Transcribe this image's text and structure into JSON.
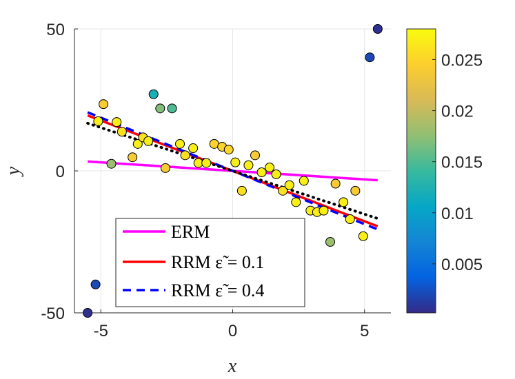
{
  "chart_data": {
    "type": "scatter",
    "xlabel": "x",
    "ylabel": "y",
    "xlim": [
      -6,
      6
    ],
    "ylim": [
      -50,
      50
    ],
    "xticks": [
      -5,
      0,
      5
    ],
    "yticks": [
      -50,
      0,
      50
    ],
    "xtick_labels": [
      "-5",
      "0",
      "5"
    ],
    "ytick_labels": [
      "-50",
      "0",
      "50"
    ],
    "grid": true,
    "colorbar": {
      "range": [
        0.0002,
        0.028
      ],
      "ticks": [
        0.005,
        0.01,
        0.015,
        0.02,
        0.025
      ],
      "tick_labels": [
        "0.005",
        "0.01",
        "0.015",
        "0.02",
        "0.025"
      ],
      "colormap": "parula"
    },
    "points": [
      {
        "x": -5.5,
        "y": -50,
        "w": 0.0005
      },
      {
        "x": -5.2,
        "y": -40,
        "w": 0.002
      },
      {
        "x": 5.2,
        "y": 40,
        "w": 0.002
      },
      {
        "x": 5.5,
        "y": 50,
        "w": 0.0005
      },
      {
        "x": -5.1,
        "y": 17.5,
        "w": 0.027
      },
      {
        "x": -4.9,
        "y": 23.5,
        "w": 0.024
      },
      {
        "x": -4.6,
        "y": 2.5,
        "w": 0.018
      },
      {
        "x": -4.4,
        "y": 17.2,
        "w": 0.027
      },
      {
        "x": -4.2,
        "y": 13.8,
        "w": 0.026
      },
      {
        "x": -3.8,
        "y": 4.8,
        "w": 0.024
      },
      {
        "x": -3.6,
        "y": 9.5,
        "w": 0.027
      },
      {
        "x": -3.4,
        "y": 11.8,
        "w": 0.026
      },
      {
        "x": -3.2,
        "y": 10.5,
        "w": 0.027
      },
      {
        "x": -3.0,
        "y": 27,
        "w": 0.012
      },
      {
        "x": -2.75,
        "y": 22,
        "w": 0.017
      },
      {
        "x": -2.55,
        "y": 1,
        "w": 0.024
      },
      {
        "x": -2.3,
        "y": 22,
        "w": 0.015
      },
      {
        "x": -2.0,
        "y": 9.5,
        "w": 0.027
      },
      {
        "x": -1.8,
        "y": 5.5,
        "w": 0.026
      },
      {
        "x": -1.5,
        "y": 8,
        "w": 0.027
      },
      {
        "x": -1.3,
        "y": 2.8,
        "w": 0.027
      },
      {
        "x": -1.0,
        "y": 2.8,
        "w": 0.027
      },
      {
        "x": -0.7,
        "y": 9.5,
        "w": 0.025
      },
      {
        "x": -0.4,
        "y": 8.5,
        "w": 0.025
      },
      {
        "x": -0.15,
        "y": 7.5,
        "w": 0.025
      },
      {
        "x": 0.1,
        "y": 3,
        "w": 0.027
      },
      {
        "x": 0.35,
        "y": -7,
        "w": 0.026
      },
      {
        "x": 0.6,
        "y": 2,
        "w": 0.027
      },
      {
        "x": 0.85,
        "y": 5.5,
        "w": 0.024
      },
      {
        "x": 1.1,
        "y": -0.5,
        "w": 0.027
      },
      {
        "x": 1.4,
        "y": 1.2,
        "w": 0.027
      },
      {
        "x": 1.65,
        "y": -1.2,
        "w": 0.027
      },
      {
        "x": 1.9,
        "y": -7,
        "w": 0.026
      },
      {
        "x": 2.15,
        "y": -5,
        "w": 0.027
      },
      {
        "x": 2.4,
        "y": -11,
        "w": 0.027
      },
      {
        "x": 2.7,
        "y": -3.5,
        "w": 0.027
      },
      {
        "x": 2.95,
        "y": -14,
        "w": 0.027
      },
      {
        "x": 3.2,
        "y": -14.5,
        "w": 0.027
      },
      {
        "x": 3.45,
        "y": -14,
        "w": 0.027
      },
      {
        "x": 3.7,
        "y": -25,
        "w": 0.018
      },
      {
        "x": 3.9,
        "y": -4.5,
        "w": 0.024
      },
      {
        "x": 4.2,
        "y": -11,
        "w": 0.027
      },
      {
        "x": 4.45,
        "y": -17,
        "w": 0.027
      },
      {
        "x": 4.65,
        "y": -7,
        "w": 0.024
      },
      {
        "x": 4.95,
        "y": -23,
        "w": 0.027
      }
    ],
    "series": [
      {
        "name": "ERM",
        "slope": -0.6,
        "color": "#ff00ff",
        "style": "solid"
      },
      {
        "name": "RRM ε̃ = 0.1",
        "slope": -3.55,
        "color": "#ff0000",
        "style": "solid"
      },
      {
        "name": "RRM ε̃ = 0.4",
        "slope": -3.75,
        "color": "#0000ff",
        "style": "dashed"
      },
      {
        "name": "",
        "slope": -3.05,
        "color": "#000000",
        "style": "dotted"
      }
    ],
    "line_x_range": [
      -5.5,
      5.5
    ],
    "legend": {
      "position": "bottom-left",
      "entries": [
        "ERM",
        "RRM ε̃ = 0.1",
        "RRM ε̃ = 0.4"
      ]
    }
  }
}
